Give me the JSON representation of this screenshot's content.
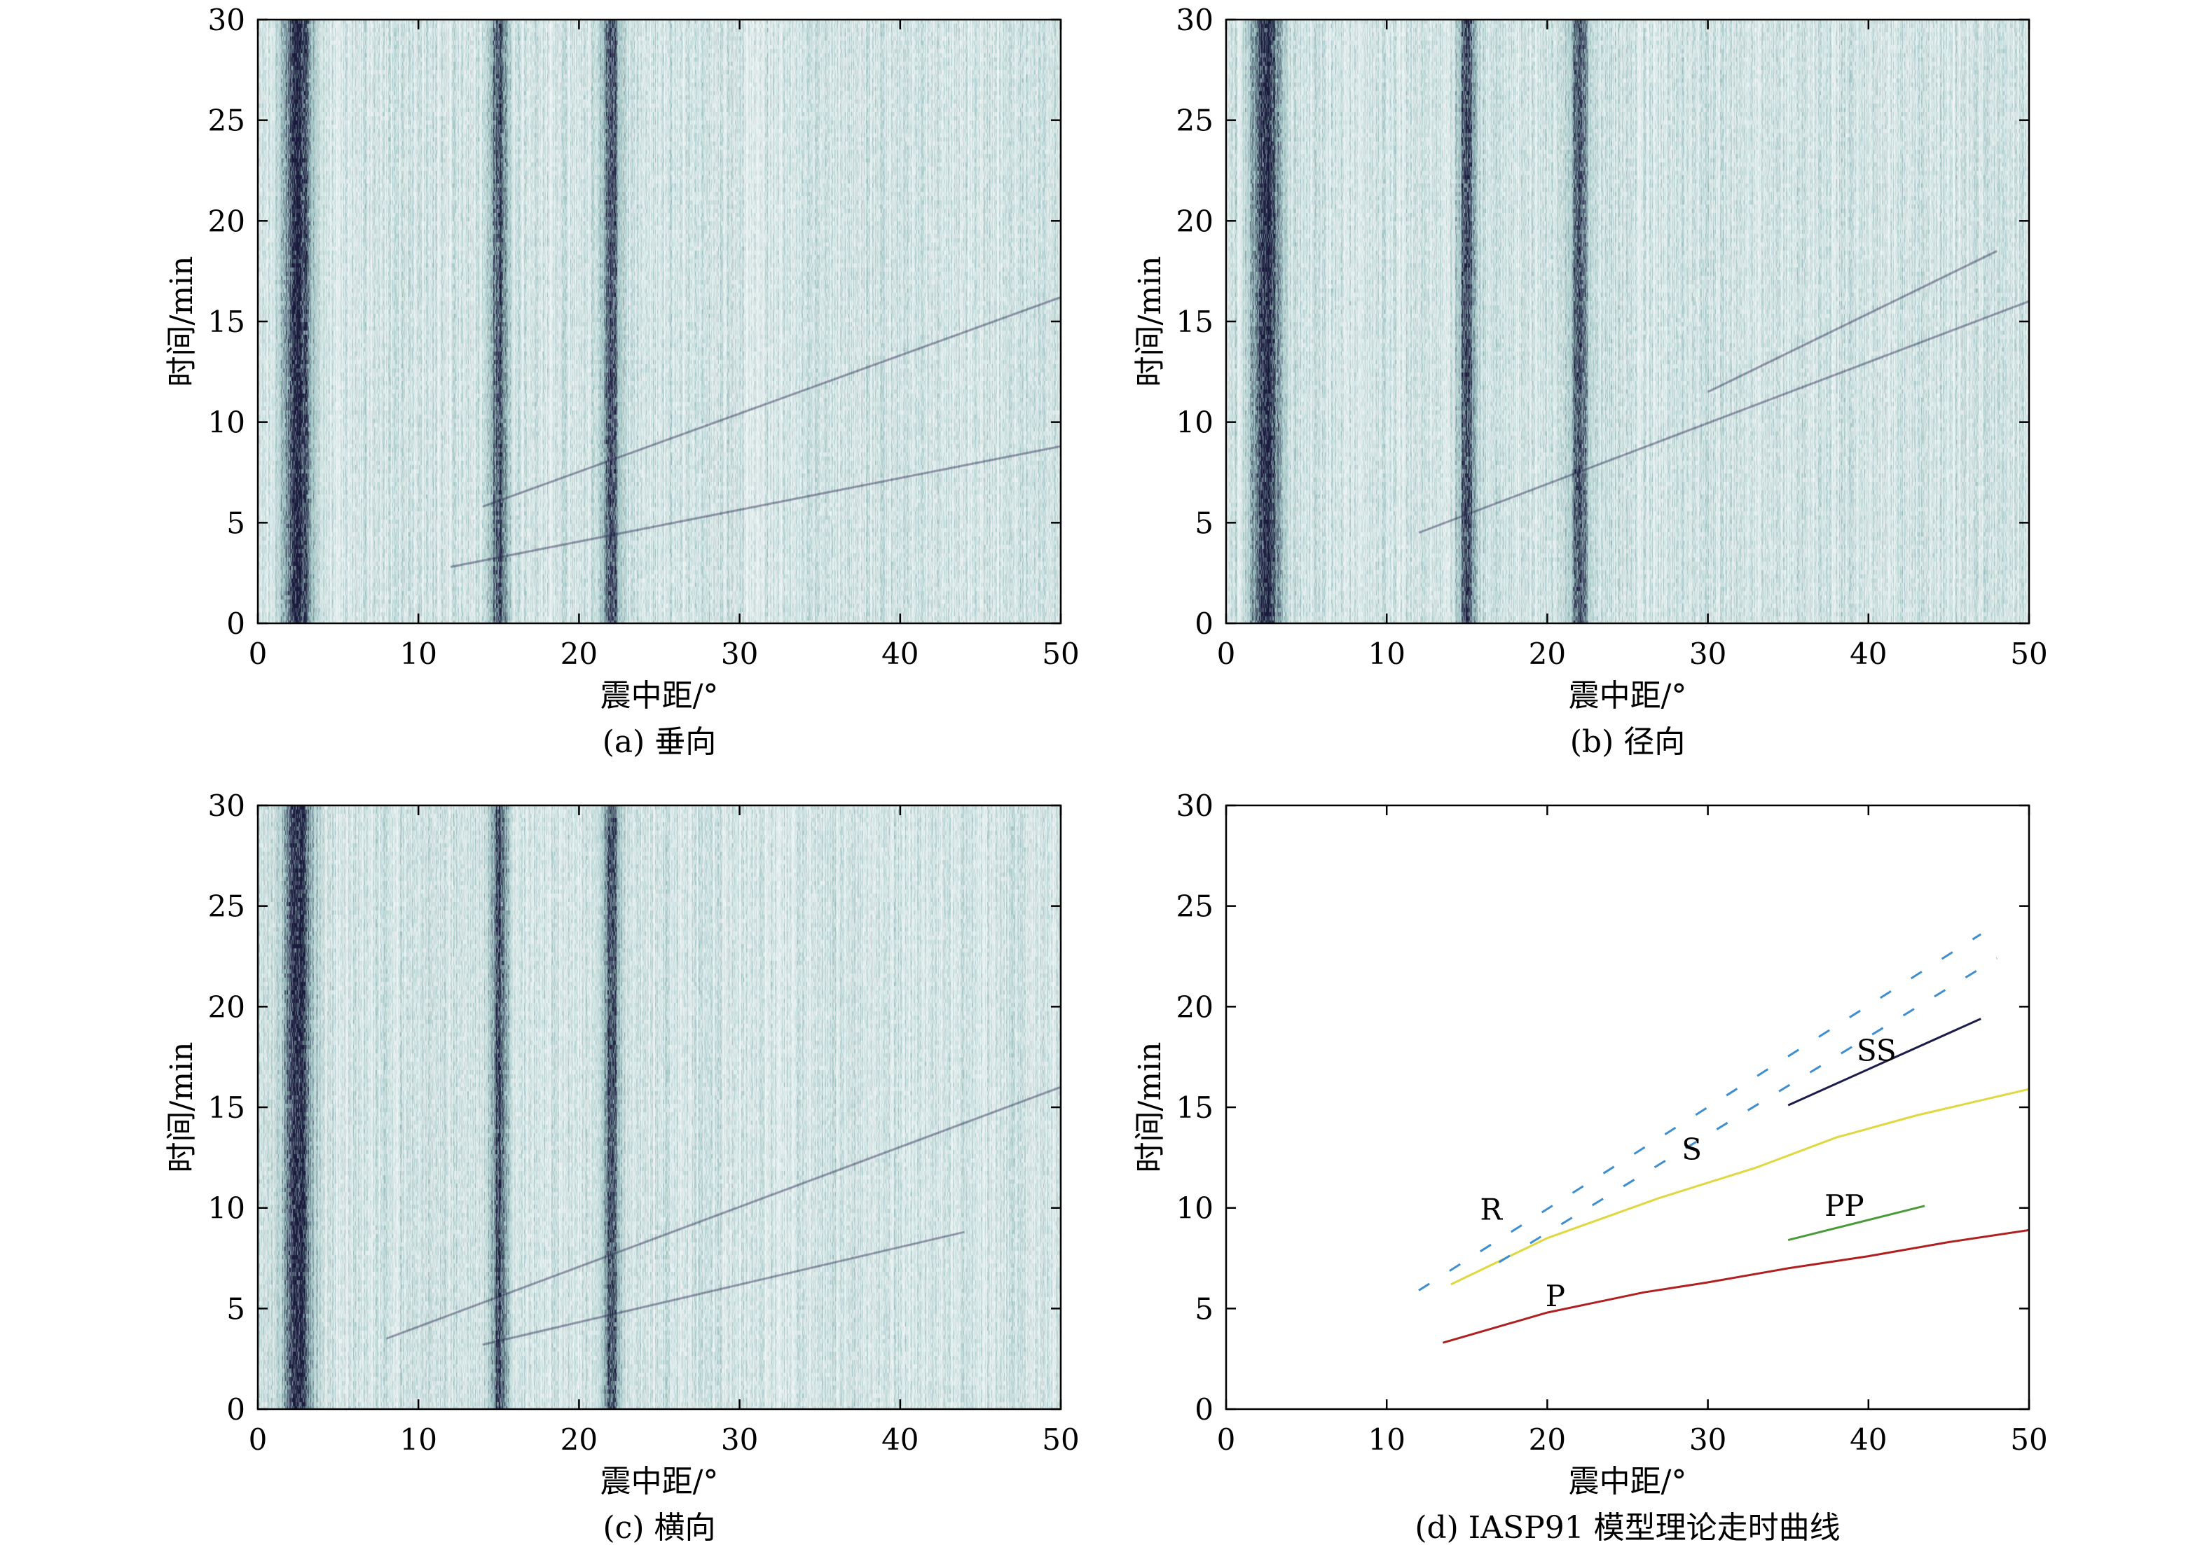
{
  "figure": {
    "panels": [
      {
        "id": "a",
        "caption": "(a) 垂向",
        "xlabel": "震中距/°",
        "ylabel": "时间/min"
      },
      {
        "id": "b",
        "caption": "(b) 径向",
        "xlabel": "震中距/°",
        "ylabel": "时间/min"
      },
      {
        "id": "c",
        "caption": "(c) 横向",
        "xlabel": "震中距/°",
        "ylabel": "时间/min"
      },
      {
        "id": "d",
        "caption": "(d) IASP91 模型理论走时曲线",
        "xlabel": "震中距/°",
        "ylabel": "时间/min"
      }
    ]
  },
  "chart_data": [
    {
      "panel": "a",
      "type": "heatmap",
      "xlim": [
        0,
        50
      ],
      "ylim": [
        0,
        30
      ],
      "xticks": [
        0,
        10,
        20,
        30,
        40,
        50
      ],
      "yticks": [
        0,
        5,
        10,
        15,
        20,
        25,
        30
      ],
      "xlabel": "震中距/°",
      "ylabel": "时间/min",
      "colors": {
        "low": "#ffffff",
        "mid": "#9fc3c3",
        "high": "#1a1a3c"
      },
      "dark_bands_deg": [
        2.5,
        15,
        22
      ],
      "arrivals": [
        {
          "x": [
            12,
            50
          ],
          "y": [
            2.8,
            8.8
          ]
        },
        {
          "x": [
            14,
            50
          ],
          "y": [
            5.8,
            16.2
          ]
        }
      ]
    },
    {
      "panel": "b",
      "type": "heatmap",
      "xlim": [
        0,
        50
      ],
      "ylim": [
        0,
        30
      ],
      "xticks": [
        0,
        10,
        20,
        30,
        40,
        50
      ],
      "yticks": [
        0,
        5,
        10,
        15,
        20,
        25,
        30
      ],
      "xlabel": "震中距/°",
      "ylabel": "时间/min",
      "colors": {
        "low": "#ffffff",
        "mid": "#9fc3c3",
        "high": "#1a1a3c"
      },
      "dark_bands_deg": [
        2.5,
        15,
        22
      ],
      "arrivals": [
        {
          "x": [
            12,
            50
          ],
          "y": [
            4.5,
            16
          ]
        },
        {
          "x": [
            30,
            48
          ],
          "y": [
            11.5,
            18.5
          ]
        }
      ]
    },
    {
      "panel": "c",
      "type": "heatmap",
      "xlim": [
        0,
        50
      ],
      "ylim": [
        0,
        30
      ],
      "xticks": [
        0,
        10,
        20,
        30,
        40,
        50
      ],
      "yticks": [
        0,
        5,
        10,
        15,
        20,
        25,
        30
      ],
      "xlabel": "震中距/°",
      "ylabel": "时间/min",
      "colors": {
        "low": "#ffffff",
        "mid": "#9fc3c3",
        "high": "#1a1a3c"
      },
      "dark_bands_deg": [
        2.5,
        15,
        22
      ],
      "arrivals": [
        {
          "x": [
            8,
            50
          ],
          "y": [
            3.5,
            16
          ]
        },
        {
          "x": [
            14,
            44
          ],
          "y": [
            3.2,
            8.8
          ]
        }
      ]
    },
    {
      "panel": "d",
      "type": "line",
      "xlim": [
        0,
        50
      ],
      "ylim": [
        0,
        30
      ],
      "xticks": [
        0,
        10,
        20,
        30,
        40,
        50
      ],
      "yticks": [
        0,
        5,
        10,
        15,
        20,
        25,
        30
      ],
      "xlabel": "震中距/°",
      "ylabel": "时间/min",
      "series": [
        {
          "name": "P",
          "color": "#b02020",
          "dashed": false,
          "x": [
            13.5,
            20,
            26,
            30,
            35,
            40,
            45,
            50
          ],
          "y": [
            3.3,
            4.8,
            5.8,
            6.3,
            7.0,
            7.6,
            8.3,
            8.9
          ],
          "label_at": [
            20.5,
            5.6
          ]
        },
        {
          "name": "S",
          "color": "#e0d840",
          "dashed": false,
          "x": [
            14,
            20,
            27,
            33,
            38,
            43,
            50
          ],
          "y": [
            6.2,
            8.5,
            10.5,
            12.0,
            13.5,
            14.6,
            15.9
          ],
          "label_at": [
            29,
            12.9
          ]
        },
        {
          "name": "PP",
          "color": "#4a9a3a",
          "dashed": false,
          "x": [
            35,
            43.5
          ],
          "y": [
            8.4,
            10.1
          ],
          "label_at": [
            38.5,
            10.1
          ]
        },
        {
          "name": "SS",
          "color": "#1c1c4c",
          "dashed": false,
          "x": [
            35,
            47
          ],
          "y": [
            15.1,
            19.4
          ],
          "label_at": [
            40.5,
            17.8
          ]
        },
        {
          "name": "R",
          "color": "#3f8fd0",
          "dashed": true,
          "x": [
            12,
            47
          ],
          "y": [
            5.9,
            23.6
          ],
          "label_at": [
            16.5,
            9.9
          ]
        },
        {
          "name": "",
          "color": "#3f8fd0",
          "dashed": true,
          "x": [
            17,
            48
          ],
          "y": [
            7.3,
            22.4
          ]
        }
      ]
    }
  ]
}
